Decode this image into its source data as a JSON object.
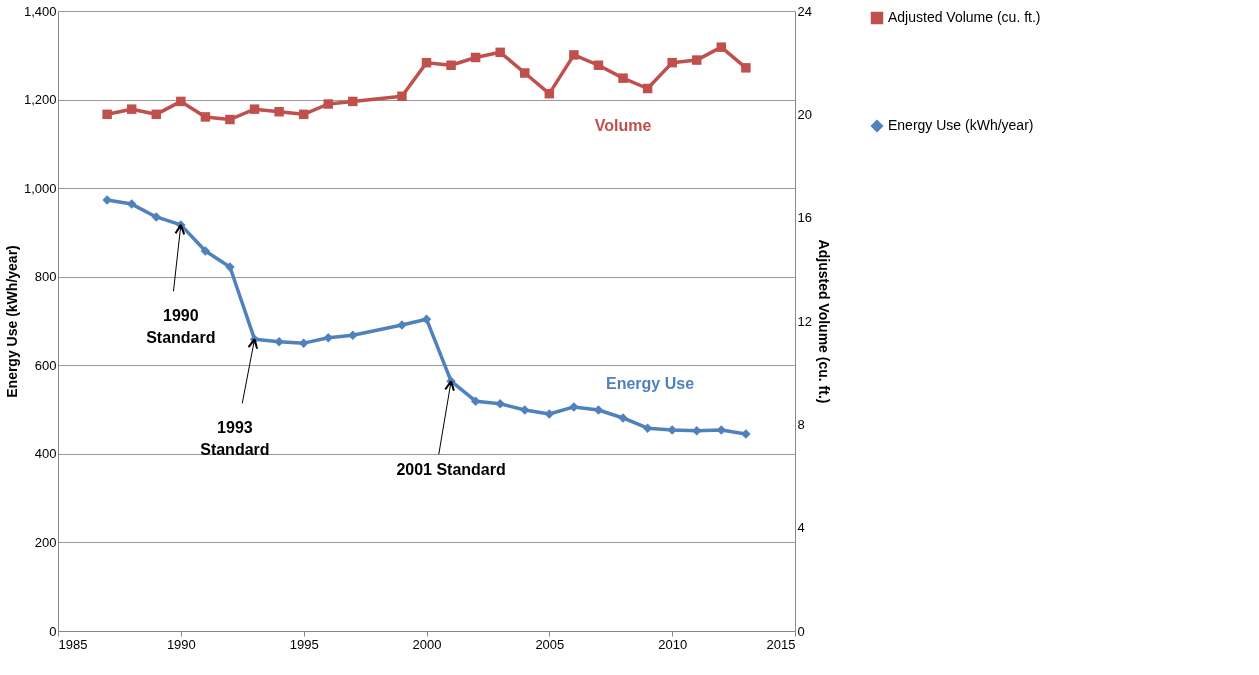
{
  "chart_data": {
    "type": "line",
    "x": [
      1987,
      1988,
      1989,
      1990,
      1991,
      1992,
      1993,
      1994,
      1995,
      1996,
      1997,
      1999,
      2000,
      2001,
      2002,
      2003,
      2004,
      2005,
      2006,
      2007,
      2008,
      2009,
      2010,
      2011,
      2012,
      2013
    ],
    "series": [
      {
        "name": "Adjusted Volume (cu. ft.)",
        "color": "#c0504d",
        "axis": "y2",
        "marker": "square",
        "values": [
          20.0,
          20.2,
          20.0,
          20.5,
          19.9,
          19.8,
          20.2,
          20.1,
          20.0,
          20.4,
          20.5,
          20.7,
          22.0,
          21.9,
          22.2,
          22.4,
          21.6,
          20.8,
          22.3,
          21.9,
          21.4,
          21.0,
          22.0,
          22.1,
          22.6,
          21.8
        ]
      },
      {
        "name": "Energy Use (kWh/year)",
        "color": "#4f81bd",
        "marker": "diamond",
        "values": [
          973,
          964,
          935,
          917,
          858,
          822,
          659,
          653,
          650,
          662,
          668,
          691,
          704,
          564,
          519,
          513,
          499,
          490,
          506,
          499,
          481,
          458,
          454,
          452,
          454,
          445
        ]
      }
    ],
    "xlim": [
      1985,
      2015
    ],
    "xticks": [
      1985,
      1990,
      1995,
      2000,
      2005,
      2010,
      2015
    ],
    "ylim": [
      0,
      1400
    ],
    "yticks": [
      {
        "value": 0,
        "label": "0"
      },
      {
        "value": 200,
        "label": "200"
      },
      {
        "value": 400,
        "label": "400"
      },
      {
        "value": 600,
        "label": "600"
      },
      {
        "value": 800,
        "label": "800"
      },
      {
        "value": 1000,
        "label": "1,000"
      },
      {
        "value": 1200,
        "label": "1,200"
      },
      {
        "value": 1400,
        "label": "1,400"
      }
    ],
    "y2lim": [
      0,
      24
    ],
    "y2ticks": [
      0,
      4,
      8,
      12,
      16,
      20,
      24
    ],
    "ylabel": "Energy Use (kWh/year)",
    "y2label": "Adjusted Volume (cu. ft.)",
    "annotations": [
      {
        "text": "1990 Standard",
        "x": 1990,
        "y": 917
      },
      {
        "text": "1993 Standard",
        "x": 1993,
        "y": 659
      },
      {
        "text": "2001 Standard",
        "x": 2001,
        "y": 564
      },
      "Volume",
      "Energy Use"
    ],
    "grid": "y",
    "legend": "right",
    "line_style": "solid"
  }
}
